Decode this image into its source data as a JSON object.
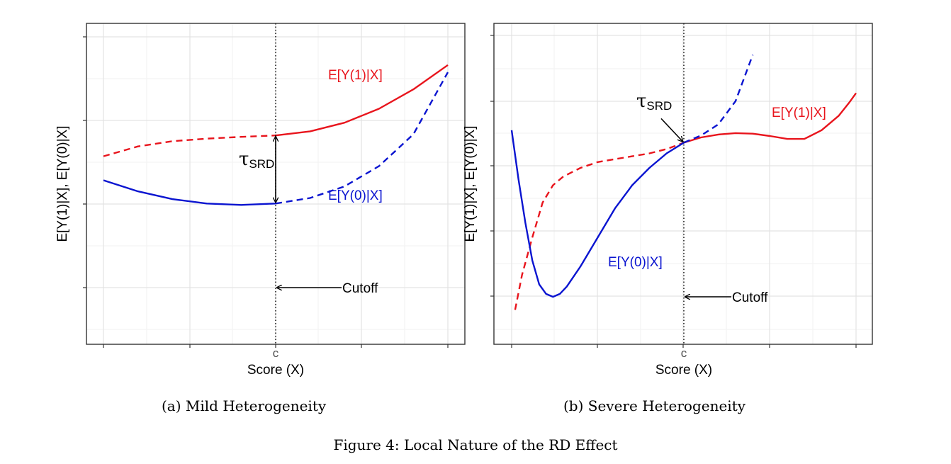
{
  "figure": {
    "caption": "Figure 4: Local Nature of the RD Effect"
  },
  "chart_data": [
    {
      "type": "line",
      "panel_caption": "(a) Mild Heterogeneity",
      "xlabel": "Score (X)",
      "ylabel": "E[Y(1)|X], E[Y(0)|X]",
      "x_tick_labels": [
        "c"
      ],
      "grid": true,
      "xlim": [
        0,
        1
      ],
      "ylim": [
        0,
        1
      ],
      "cutoff": 0.5,
      "cutoff_label": "Cutoff",
      "effect_label": "τSRD",
      "series": [
        {
          "name": "E[Y(1)|X]",
          "color": "#e8141c",
          "x": [
            0.0,
            0.1,
            0.2,
            0.3,
            0.4,
            0.5,
            0.6,
            0.7,
            0.8,
            0.9,
            1.0
          ],
          "values": [
            0.6,
            0.634,
            0.652,
            0.661,
            0.667,
            0.672,
            0.686,
            0.716,
            0.764,
            0.831,
            0.915
          ]
        },
        {
          "name": "E[Y(0)|X]",
          "color": "#0a14d0",
          "x": [
            0.0,
            0.1,
            0.2,
            0.3,
            0.4,
            0.5,
            0.6,
            0.7,
            0.8,
            0.9,
            1.0
          ],
          "values": [
            0.517,
            0.479,
            0.452,
            0.437,
            0.432,
            0.437,
            0.456,
            0.496,
            0.566,
            0.676,
            0.89
          ]
        }
      ]
    },
    {
      "type": "line",
      "panel_caption": "(b) Severe Heterogeneity",
      "xlabel": "Score (X)",
      "ylabel": "E[Y(1)|X], E[Y(0)|X]",
      "x_tick_labels": [
        "c"
      ],
      "grid": true,
      "xlim": [
        0,
        1
      ],
      "ylim": [
        0,
        1
      ],
      "cutoff": 0.5,
      "cutoff_label": "Cutoff",
      "effect_label": "τSRD",
      "series": [
        {
          "name": "E[Y(1)|X]",
          "color": "#e8141c",
          "x": [
            0.01,
            0.03,
            0.06,
            0.09,
            0.12,
            0.15,
            0.2,
            0.25,
            0.3,
            0.35,
            0.4,
            0.45,
            0.5,
            0.55,
            0.6,
            0.65,
            0.7,
            0.75,
            0.8,
            0.85,
            0.9,
            0.95,
            0.98,
            1.0
          ],
          "values": [
            0.07,
            0.19,
            0.32,
            0.44,
            0.5,
            0.53,
            0.56,
            0.58,
            0.59,
            0.6,
            0.61,
            0.625,
            0.647,
            0.665,
            0.675,
            0.68,
            0.678,
            0.67,
            0.66,
            0.66,
            0.69,
            0.74,
            0.785,
            0.818
          ]
        },
        {
          "name": "E[Y(0)|X]",
          "color": "#0a14d0",
          "x": [
            0.0,
            0.02,
            0.04,
            0.06,
            0.08,
            0.1,
            0.12,
            0.14,
            0.16,
            0.2,
            0.25,
            0.3,
            0.35,
            0.4,
            0.45,
            0.5,
            0.55,
            0.6,
            0.65,
            0.7
          ],
          "values": [
            0.69,
            0.52,
            0.37,
            0.24,
            0.158,
            0.125,
            0.115,
            0.125,
            0.15,
            0.22,
            0.32,
            0.42,
            0.5,
            0.56,
            0.61,
            0.647,
            0.672,
            0.71,
            0.79,
            0.95
          ]
        }
      ]
    }
  ]
}
